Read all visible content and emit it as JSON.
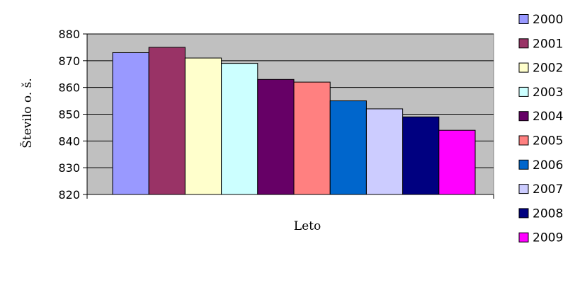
{
  "chart_data": {
    "type": "bar",
    "title": "",
    "xlabel": "Leto",
    "ylabel": "Število o. š.",
    "ylim": [
      820,
      880
    ],
    "yticks": [
      820,
      830,
      840,
      850,
      860,
      870,
      880
    ],
    "grid": true,
    "legend_position": "right",
    "plot_background": "#c0c0c0",
    "series": [
      {
        "name": "2000",
        "value": 873,
        "color": "#9999ff"
      },
      {
        "name": "2001",
        "value": 875,
        "color": "#993366"
      },
      {
        "name": "2002",
        "value": 871,
        "color": "#ffffcc"
      },
      {
        "name": "2003",
        "value": 869,
        "color": "#ccffff"
      },
      {
        "name": "2004",
        "value": 863,
        "color": "#660066"
      },
      {
        "name": "2005",
        "value": 862,
        "color": "#ff8080"
      },
      {
        "name": "2006",
        "value": 855,
        "color": "#0066cc"
      },
      {
        "name": "2007",
        "value": 852,
        "color": "#ccccff"
      },
      {
        "name": "2008",
        "value": 849,
        "color": "#000080"
      },
      {
        "name": "2009",
        "value": 844,
        "color": "#ff00ff"
      }
    ]
  }
}
